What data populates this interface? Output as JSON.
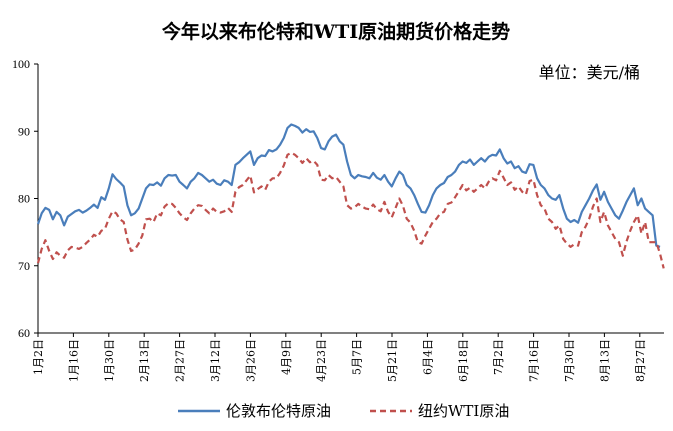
{
  "chart_data": {
    "type": "line",
    "title": "今年以来布伦特和WTI原油期货价格走势",
    "unit_label": "单位：美元/桶",
    "ylim": [
      60,
      100
    ],
    "yticks": [
      "60",
      "70",
      "80",
      "90",
      "100"
    ],
    "xticks": [
      "1月2日",
      "1月16日",
      "1月30日",
      "2月13日",
      "2月27日",
      "3月12日",
      "3月26日",
      "4月9日",
      "4月23日",
      "5月7日",
      "5月21日",
      "6月4日",
      "6月18日",
      "7月2日",
      "7月16日",
      "7月30日",
      "8月13日",
      "8月27日"
    ],
    "grid": false,
    "legend_position": "bottom",
    "series": [
      {
        "name": "伦敦布伦特原油",
        "color": "#4a7ebb",
        "dash": "solid",
        "values": [
          76.2,
          77.8,
          78.6,
          78.3,
          76.9,
          78.0,
          77.5,
          76.0,
          77.3,
          77.7,
          78.1,
          78.3,
          77.9,
          78.2,
          78.6,
          79.1,
          78.6,
          80.2,
          79.8,
          81.5,
          83.6,
          82.9,
          82.4,
          81.8,
          79.0,
          77.5,
          77.8,
          78.5,
          80.0,
          81.5,
          82.1,
          82.0,
          82.4,
          81.9,
          83.0,
          83.5,
          83.4,
          83.5,
          82.5,
          82.0,
          81.5,
          82.5,
          83.0,
          83.8,
          83.5,
          83.0,
          82.5,
          82.8,
          82.2,
          82.0,
          82.7,
          82.5,
          82.0,
          85.0,
          85.4,
          86.0,
          86.5,
          87.0,
          85.0,
          86.0,
          86.4,
          86.3,
          87.2,
          87.0,
          87.3,
          88.0,
          89.0,
          90.5,
          91.0,
          90.8,
          90.5,
          89.8,
          90.3,
          89.9,
          90.0,
          89.0,
          87.5,
          87.3,
          88.5,
          89.2,
          89.5,
          88.5,
          88.0,
          85.5,
          83.5,
          83.0,
          83.5,
          83.3,
          83.2,
          83.0,
          83.8,
          83.1,
          82.8,
          83.5,
          82.5,
          81.8,
          83.0,
          84.0,
          83.5,
          82.0,
          81.5,
          80.5,
          79.2,
          78.0,
          77.9,
          79.0,
          80.5,
          81.5,
          82.0,
          82.3,
          83.2,
          83.5,
          84.0,
          85.0,
          85.5,
          85.3,
          85.8,
          85.0,
          85.5,
          86.0,
          85.5,
          86.2,
          86.5,
          86.4,
          87.3,
          86.0,
          85.2,
          85.5,
          84.5,
          84.8,
          84.0,
          83.8,
          85.1,
          85.0,
          83.0,
          82.0,
          81.5,
          80.5,
          80.0,
          79.8,
          80.5,
          78.5,
          77.0,
          76.5,
          76.8,
          76.4,
          78.0,
          79.0,
          80.0,
          81.2,
          82.1,
          79.8,
          81.0,
          79.5,
          78.5,
          77.5,
          77.0,
          78.2,
          79.5,
          80.5,
          81.5,
          79.0,
          80.0,
          78.5,
          78.0,
          77.5,
          73.0,
          72.8
        ]
      },
      {
        "name": "纽约WTI原油",
        "color": "#c0504d",
        "dash": "dash",
        "values": [
          70.4,
          72.5,
          73.8,
          72.2,
          71.0,
          72.0,
          71.5,
          71.2,
          72.3,
          72.8,
          72.7,
          72.5,
          72.8,
          73.4,
          73.9,
          74.6,
          74.3,
          75.2,
          75.5,
          77.0,
          78.1,
          77.8,
          76.9,
          76.5,
          73.9,
          72.2,
          72.4,
          73.3,
          74.5,
          76.9,
          77.0,
          76.5,
          77.8,
          77.5,
          78.8,
          79.3,
          79.2,
          78.6,
          77.8,
          77.2,
          76.8,
          77.8,
          78.5,
          79.0,
          78.9,
          78.3,
          77.8,
          78.5,
          78.0,
          77.9,
          78.1,
          78.6,
          78.0,
          81.0,
          81.7,
          82.0,
          82.7,
          83.4,
          80.9,
          81.4,
          81.8,
          81.3,
          82.5,
          83.0,
          83.0,
          83.8,
          84.9,
          86.5,
          86.8,
          86.5,
          86.0,
          85.3,
          86.0,
          85.4,
          85.6,
          85.0,
          82.8,
          82.7,
          83.5,
          83.0,
          83.2,
          82.5,
          81.8,
          79.0,
          78.5,
          78.7,
          79.2,
          78.8,
          78.5,
          78.4,
          79.1,
          78.4,
          78.1,
          79.5,
          78.0,
          77.2,
          78.6,
          80.0,
          78.9,
          77.0,
          76.4,
          75.2,
          73.5,
          73.3,
          74.5,
          75.5,
          76.5,
          77.0,
          77.8,
          78.0,
          79.2,
          79.4,
          80.2,
          81.1,
          82.0,
          81.2,
          81.6,
          81.0,
          81.5,
          82.0,
          81.5,
          82.5,
          83.0,
          82.7,
          84.1,
          83.1,
          82.0,
          82.4,
          81.3,
          81.8,
          81.0,
          80.6,
          82.6,
          82.8,
          80.5,
          79.0,
          78.5,
          77.0,
          76.5,
          75.5,
          76.0,
          74.0,
          73.3,
          72.8,
          73.2,
          73.0,
          75.0,
          75.8,
          77.0,
          78.8,
          80.0,
          76.5,
          78.0,
          76.0,
          75.0,
          74.0,
          73.5,
          71.5,
          73.6,
          75.2,
          76.5,
          77.5,
          74.8,
          76.5,
          73.5,
          73.5,
          73.5,
          71.8,
          69.6
        ]
      }
    ]
  }
}
